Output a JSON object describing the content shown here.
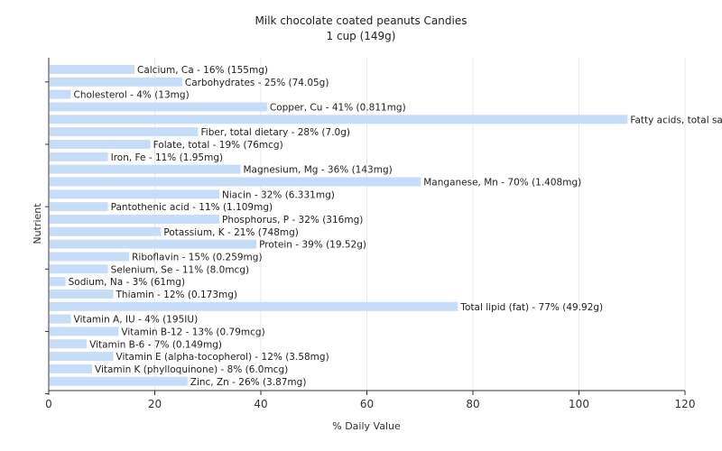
{
  "chart_data": {
    "type": "bar",
    "orientation": "horizontal",
    "title": "Milk chocolate coated peanuts Candies",
    "subtitle": "1 cup (149g)",
    "xlabel": "% Daily Value",
    "ylabel": "Nutrient",
    "xlim": [
      0,
      120
    ],
    "xticks": [
      0,
      20,
      40,
      60,
      80,
      100,
      120
    ],
    "grid": true,
    "bar_color": "#c6dcf7",
    "categories": [
      "Calcium, Ca",
      "Carbohydrates",
      "Cholesterol",
      "Copper, Cu",
      "Fatty acids, total saturated",
      "Fiber, total dietary",
      "Folate, total",
      "Iron, Fe",
      "Magnesium, Mg",
      "Manganese, Mn",
      "Niacin",
      "Pantothenic acid",
      "Phosphorus, P",
      "Potassium, K",
      "Protein",
      "Riboflavin",
      "Selenium, Se",
      "Sodium, Na",
      "Thiamin",
      "Total lipid (fat)",
      "Vitamin A, IU",
      "Vitamin B-12",
      "Vitamin B-6",
      "Vitamin E (alpha-tocopherol)",
      "Vitamin K (phylloquinone)",
      "Zinc, Zn"
    ],
    "values": [
      16,
      25,
      4,
      41,
      109,
      28,
      19,
      11,
      36,
      70,
      32,
      11,
      32,
      21,
      39,
      15,
      11,
      3,
      12,
      77,
      4,
      13,
      7,
      12,
      8,
      26
    ],
    "labels": [
      "Calcium, Ca - 16% (155mg)",
      "Carbohydrates - 25% (74.05g)",
      "Cholesterol - 4% (13mg)",
      "Copper, Cu - 41% (0.811mg)",
      "Fatty acids, total saturated - 109% (21.754g)",
      "Fiber, total dietary - 28% (7.0g)",
      "Folate, total - 19% (76mcg)",
      "Iron, Fe - 11% (1.95mg)",
      "Magnesium, Mg - 36% (143mg)",
      "Manganese, Mn - 70% (1.408mg)",
      "Niacin - 32% (6.331mg)",
      "Pantothenic acid - 11% (1.109mg)",
      "Phosphorus, P - 32% (316mg)",
      "Potassium, K - 21% (748mg)",
      "Protein - 39% (19.52g)",
      "Riboflavin - 15% (0.259mg)",
      "Selenium, Se - 11% (8.0mcg)",
      "Sodium, Na - 3% (61mg)",
      "Thiamin - 12% (0.173mg)",
      "Total lipid (fat) - 77% (49.92g)",
      "Vitamin A, IU - 4% (195IU)",
      "Vitamin B-12 - 13% (0.79mcg)",
      "Vitamin B-6 - 7% (0.149mg)",
      "Vitamin E (alpha-tocopherol) - 12% (3.58mg)",
      "Vitamin K (phylloquinone) - 8% (6.0mcg)",
      "Zinc, Zn - 26% (3.87mg)"
    ]
  }
}
